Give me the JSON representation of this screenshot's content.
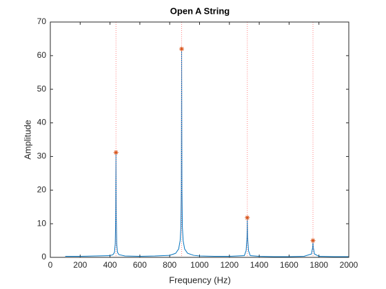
{
  "chart_data": {
    "type": "line",
    "title": "Open A String",
    "xlabel": "Frequency (Hz)",
    "ylabel": "Amplitude",
    "xlim": [
      0,
      2000
    ],
    "xticks": [
      0,
      200,
      400,
      600,
      800,
      1000,
      1200,
      1400,
      1600,
      1800,
      2000
    ],
    "ylim": [
      0,
      70
    ],
    "yticks": [
      0,
      10,
      20,
      30,
      40,
      50,
      60,
      70
    ],
    "grid": false,
    "box": true,
    "series": [
      {
        "color": "#0072bd",
        "x": [
          100,
          200,
          300,
          400,
          420,
          430,
          435,
          438,
          440,
          442,
          445,
          450,
          460,
          500,
          600,
          700,
          800,
          840,
          860,
          870,
          875,
          878,
          880,
          882,
          885,
          890,
          900,
          920,
          960,
          1000,
          1100,
          1200,
          1300,
          1312,
          1318,
          1320,
          1322,
          1328,
          1340,
          1400,
          1500,
          1600,
          1700,
          1750,
          1758,
          1760,
          1762,
          1770,
          1800,
          1900,
          2000
        ],
        "values": [
          0.3,
          0.3,
          0.4,
          0.5,
          0.8,
          1.5,
          4,
          12,
          31.2,
          12,
          4,
          1.5,
          0.8,
          0.4,
          0.3,
          0.4,
          0.6,
          1.2,
          2.5,
          5,
          9,
          20,
          62,
          20,
          9,
          5,
          2.5,
          1.2,
          0.6,
          0.4,
          0.3,
          0.3,
          0.5,
          2,
          6,
          11.8,
          6,
          2,
          0.5,
          0.3,
          0.2,
          0.2,
          0.3,
          1,
          3,
          5,
          3,
          1,
          0.3,
          0.2,
          0.2
        ]
      },
      {
        "color": "#d95319",
        "marker": "*",
        "guides": true,
        "guide_color": "#ff7f7f",
        "x": [
          440,
          880,
          1320,
          1760
        ],
        "values": [
          31.2,
          62,
          11.8,
          5
        ]
      }
    ]
  }
}
